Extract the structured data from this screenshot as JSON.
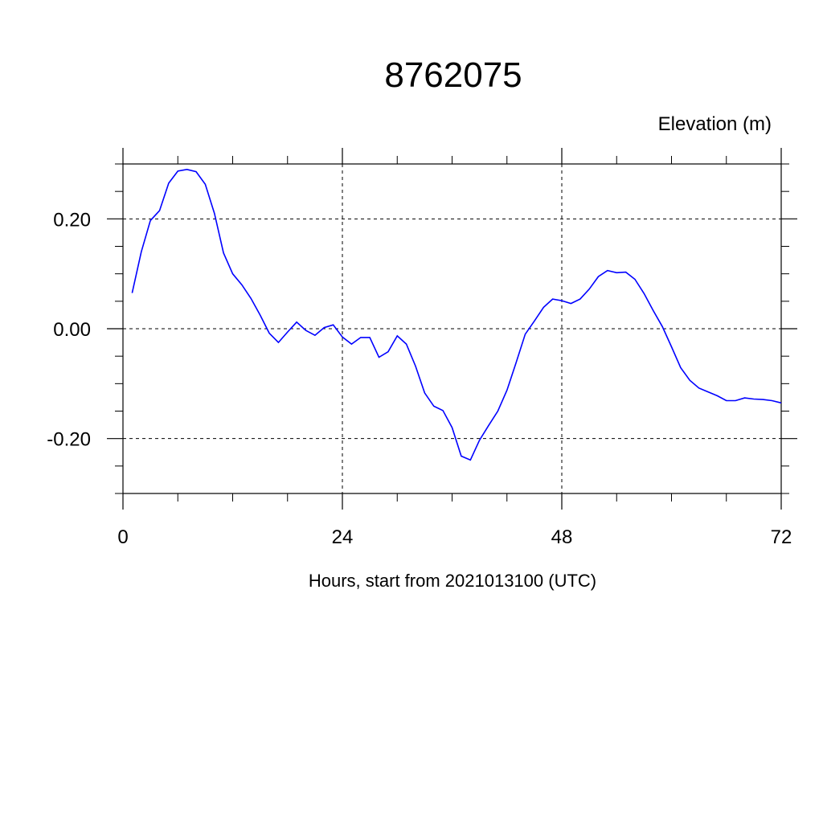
{
  "chart_data": {
    "type": "line",
    "title": "8762075",
    "ylabel": "Elevation (m)",
    "xlabel": "Hours, start from 2021013100 (UTC)",
    "xlim": [
      0,
      72
    ],
    "ylim": [
      -0.3,
      0.3
    ],
    "grid": true,
    "x_ticks": [
      0,
      24,
      48,
      72
    ],
    "x_tick_labels": [
      "0",
      "24",
      "48",
      "72"
    ],
    "y_ticks": [
      -0.2,
      0.0,
      0.2
    ],
    "y_tick_labels": [
      "-0.20",
      "0.00",
      "0.20"
    ],
    "series_color": "#0000ff",
    "series": [
      {
        "x": [
          1,
          2,
          3,
          4,
          5,
          6,
          7,
          8,
          9,
          10,
          11,
          12,
          13,
          14,
          15,
          16,
          17,
          18,
          19,
          20,
          21,
          22,
          23,
          24,
          25,
          26,
          27,
          28,
          29,
          30,
          31,
          32,
          33,
          34,
          35,
          36,
          37,
          38,
          39,
          40,
          41,
          42,
          43,
          44,
          45,
          46,
          47,
          48,
          49,
          50,
          51,
          52,
          53,
          54,
          55,
          56,
          57,
          58,
          59,
          60,
          61,
          62,
          63,
          64,
          65,
          66,
          67,
          68,
          69,
          70,
          71,
          72
        ],
        "values": [
          0.065,
          0.14,
          0.197,
          0.215,
          0.265,
          0.287,
          0.29,
          0.286,
          0.263,
          0.21,
          0.138,
          0.1,
          0.08,
          0.055,
          0.025,
          -0.008,
          -0.025,
          -0.006,
          0.012,
          -0.003,
          -0.012,
          0.002,
          0.007,
          -0.015,
          -0.028,
          -0.016,
          -0.016,
          -0.052,
          -0.042,
          -0.013,
          -0.028,
          -0.068,
          -0.117,
          -0.141,
          -0.149,
          -0.18,
          -0.232,
          -0.239,
          -0.203,
          -0.176,
          -0.15,
          -0.112,
          -0.062,
          -0.01,
          0.014,
          0.039,
          0.054,
          0.051,
          0.046,
          0.054,
          0.072,
          0.095,
          0.106,
          0.102,
          0.103,
          0.09,
          0.064,
          0.033,
          0.004,
          -0.033,
          -0.071,
          -0.094,
          -0.108,
          -0.115,
          -0.122,
          -0.131,
          -0.131,
          -0.126,
          -0.128,
          -0.129,
          -0.131,
          -0.135
        ]
      }
    ]
  }
}
